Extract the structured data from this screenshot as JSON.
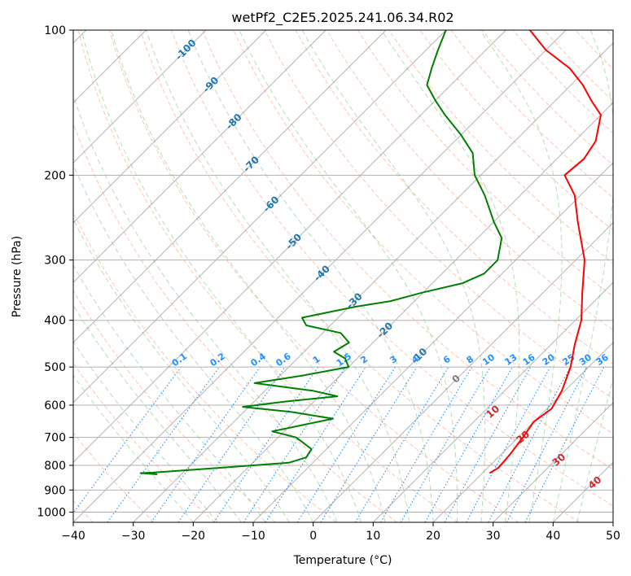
{
  "chart_data": {
    "type": "line",
    "chart_kind": "skew-T log-P diagram",
    "title": "wetPf2_C2E5.2025.241.06.34.R02",
    "xlabel": "Temperature (°C)",
    "ylabel": "Pressure (hPa)",
    "xlim": [
      -40,
      50
    ],
    "ylim": [
      1050,
      100
    ],
    "y_scale": "log",
    "grid": true,
    "x_ticks": [
      -40,
      -30,
      -20,
      -10,
      0,
      10,
      20,
      30,
      40,
      50
    ],
    "y_ticks": [
      100,
      200,
      300,
      400,
      500,
      600,
      700,
      800,
      900,
      1000
    ],
    "colors": {
      "temperature": "#ff0000",
      "dewpoint": "#008000",
      "mixing_ratio_lines": "#1e90ff",
      "dry_adiabats": "#ff7f50",
      "moist_adiabats": "#2ca02c",
      "isotherms": "#808080",
      "isotherm_labels": "#1f77b4",
      "dry_adiabat_labels": "#d62728"
    },
    "series": [
      {
        "role": "temperature",
        "points": [
          {
            "p": 830,
            "t": 21.2
          },
          {
            "p": 810,
            "t": 21.8
          },
          {
            "p": 760,
            "t": 21.5
          },
          {
            "p": 700,
            "t": 20.8
          },
          {
            "p": 650,
            "t": 20.0
          },
          {
            "p": 610,
            "t": 20.8
          },
          {
            "p": 560,
            "t": 19.5
          },
          {
            "p": 500,
            "t": 17.0
          },
          {
            "p": 450,
            "t": 14.0
          },
          {
            "p": 400,
            "t": 11.0
          },
          {
            "p": 350,
            "t": 6.5
          },
          {
            "p": 300,
            "t": 1.5
          },
          {
            "p": 250,
            "t": -6.0
          },
          {
            "p": 220,
            "t": -11.0
          },
          {
            "p": 200,
            "t": -16.0
          },
          {
            "p": 185,
            "t": -15.5
          },
          {
            "p": 170,
            "t": -16.5
          },
          {
            "p": 150,
            "t": -20.0
          },
          {
            "p": 140,
            "t": -24.0
          },
          {
            "p": 130,
            "t": -28.0
          },
          {
            "p": 120,
            "t": -33.0
          },
          {
            "p": 110,
            "t": -40.0
          },
          {
            "p": 100,
            "t": -46.0
          }
        ]
      },
      {
        "role": "dewpoint",
        "points": [
          {
            "p": 835,
            "t": -34.0
          },
          {
            "p": 830,
            "t": -37.0
          },
          {
            "p": 828,
            "t": -35.0
          },
          {
            "p": 810,
            "t": -25.0
          },
          {
            "p": 790,
            "t": -14.0
          },
          {
            "p": 770,
            "t": -12.0
          },
          {
            "p": 740,
            "t": -12.5
          },
          {
            "p": 700,
            "t": -17.0
          },
          {
            "p": 680,
            "t": -22.0
          },
          {
            "p": 660,
            "t": -18.0
          },
          {
            "p": 640,
            "t": -14.0
          },
          {
            "p": 620,
            "t": -22.0
          },
          {
            "p": 605,
            "t": -31.0
          },
          {
            "p": 590,
            "t": -25.0
          },
          {
            "p": 575,
            "t": -17.0
          },
          {
            "p": 560,
            "t": -22.0
          },
          {
            "p": 540,
            "t": -33.0
          },
          {
            "p": 520,
            "t": -26.0
          },
          {
            "p": 500,
            "t": -20.0
          },
          {
            "p": 480,
            "t": -22.0
          },
          {
            "p": 465,
            "t": -25.0
          },
          {
            "p": 445,
            "t": -24.0
          },
          {
            "p": 425,
            "t": -27.0
          },
          {
            "p": 410,
            "t": -34.0
          },
          {
            "p": 395,
            "t": -36.0
          },
          {
            "p": 375,
            "t": -29.0
          },
          {
            "p": 365,
            "t": -24.0
          },
          {
            "p": 350,
            "t": -20.0
          },
          {
            "p": 335,
            "t": -15.0
          },
          {
            "p": 320,
            "t": -13.0
          },
          {
            "p": 300,
            "t": -13.0
          },
          {
            "p": 270,
            "t": -16.0
          },
          {
            "p": 250,
            "t": -20.0
          },
          {
            "p": 220,
            "t": -26.0
          },
          {
            "p": 200,
            "t": -31.0
          },
          {
            "p": 180,
            "t": -35.0
          },
          {
            "p": 165,
            "t": -40.0
          },
          {
            "p": 150,
            "t": -46.0
          },
          {
            "p": 140,
            "t": -50.0
          },
          {
            "p": 130,
            "t": -54.0
          },
          {
            "p": 120,
            "t": -56.0
          },
          {
            "p": 110,
            "t": -58.0
          },
          {
            "p": 100,
            "t": -60.0
          }
        ]
      }
    ],
    "annotations": {
      "isotherm_labels": [
        {
          "text": "-100",
          "value": -100,
          "p": 110
        },
        {
          "text": "-90",
          "value": -90,
          "p": 130
        },
        {
          "text": "-80",
          "value": -80,
          "p": 155
        },
        {
          "text": "-70",
          "value": -70,
          "p": 190
        },
        {
          "text": "-60",
          "value": -60,
          "p": 230
        },
        {
          "text": "-50",
          "value": -50,
          "p": 275
        },
        {
          "text": "-40",
          "value": -40,
          "p": 320
        },
        {
          "text": "-30",
          "value": -30,
          "p": 365
        },
        {
          "text": "-20",
          "value": -20,
          "p": 420
        },
        {
          "text": "-10",
          "value": -10,
          "p": 475
        },
        {
          "text": "0",
          "value": 0,
          "p": 530
        }
      ],
      "dry_adiabat_labels": [
        "10",
        "20",
        "30",
        "40"
      ],
      "mixing_ratio_labels": [
        "0.1",
        "0.2",
        "0.4",
        "0.6",
        "1",
        "1.5",
        "2",
        "3",
        "4",
        "6",
        "8",
        "10",
        "13",
        "16",
        "20",
        "25",
        "30",
        "36"
      ]
    }
  }
}
